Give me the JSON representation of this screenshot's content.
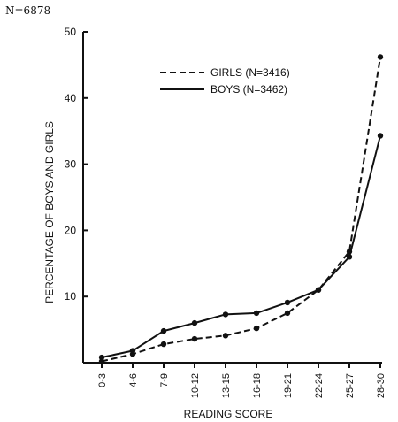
{
  "header_note": "N=6878",
  "chart_data": {
    "type": "line",
    "xlabel": "READING SCORE",
    "ylabel": "PERCENTAGE OF BOYS AND GIRLS",
    "categories": [
      "0-3",
      "4-6",
      "7-9",
      "10-12",
      "13-15",
      "16-18",
      "19-21",
      "22-24",
      "25-27",
      "28-30"
    ],
    "ylim": [
      0,
      50
    ],
    "yticks": [
      "10",
      "20",
      "30",
      "40",
      "50"
    ],
    "grid": false,
    "legend_position": "top-right",
    "series": [
      {
        "name": "GIRLS (N=3416)",
        "style": "dashed",
        "color": "#111111",
        "values": [
          0.2,
          1.3,
          2.8,
          3.6,
          4.1,
          5.2,
          7.5,
          11.0,
          16.8,
          46.2
        ]
      },
      {
        "name": "BOYS (N=3462)",
        "style": "solid",
        "color": "#111111",
        "values": [
          0.8,
          1.8,
          4.8,
          6.0,
          7.3,
          7.5,
          9.1,
          11.0,
          16.0,
          34.3
        ]
      }
    ]
  }
}
